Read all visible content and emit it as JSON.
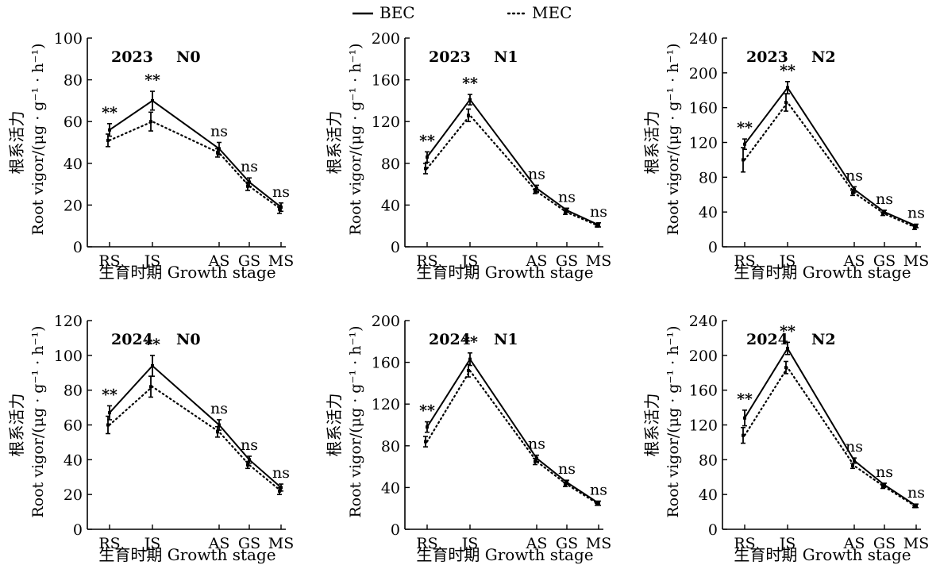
{
  "legend": {
    "items": [
      {
        "label": "BEC",
        "style": "solid"
      },
      {
        "label": "MEC",
        "style": "dotted"
      }
    ]
  },
  "chart_data": [
    {
      "type": "line",
      "title": "2023 N0",
      "year_label": "2023",
      "treatment_label": "N0",
      "xlabel": "生育时期 Growth stage",
      "ylabel_cn": "根系活力",
      "ylabel_en": "Root vigor/(μg · g⁻¹ · h⁻¹)",
      "categories": [
        "RS",
        "JS",
        "AS",
        "GS",
        "MS"
      ],
      "ylim": [
        0,
        100
      ],
      "yticks": [
        0,
        20,
        40,
        60,
        80,
        100
      ],
      "series": [
        {
          "name": "BEC",
          "style": "solid",
          "values": [
            56,
            70,
            47,
            31,
            19
          ],
          "errors": [
            3,
            4.5,
            3,
            2,
            2
          ]
        },
        {
          "name": "MEC",
          "style": "dotted",
          "values": [
            51,
            60,
            45,
            29,
            18
          ],
          "errors": [
            3,
            4.5,
            2,
            2,
            2
          ]
        }
      ],
      "significance": [
        "**",
        "**",
        "ns",
        "ns",
        "ns"
      ]
    },
    {
      "type": "line",
      "title": "2023 N1",
      "year_label": "2023",
      "treatment_label": "N1",
      "xlabel": "生育时期 Growth stage",
      "ylabel_cn": "根系活力",
      "ylabel_en": "Root vigor/(μg · g⁻¹ · h⁻¹)",
      "categories": [
        "RS",
        "JS",
        "AS",
        "GS",
        "MS"
      ],
      "ylim": [
        0,
        200
      ],
      "yticks": [
        0,
        40,
        80,
        120,
        160,
        200
      ],
      "series": [
        {
          "name": "BEC",
          "style": "solid",
          "values": [
            86,
            141,
            56,
            35,
            21
          ],
          "errors": [
            5,
            5,
            3,
            2,
            2
          ]
        },
        {
          "name": "MEC",
          "style": "dotted",
          "values": [
            75,
            126,
            53,
            33,
            20
          ],
          "errors": [
            5,
            6,
            2,
            2,
            1
          ]
        }
      ],
      "significance": [
        "**",
        "**",
        "ns",
        "ns",
        "ns"
      ]
    },
    {
      "type": "line",
      "title": "2023 N2",
      "year_label": "2023",
      "treatment_label": "N2",
      "xlabel": "生育时期 Growth stage",
      "ylabel_cn": "根系活力",
      "ylabel_en": "Root vigor/(μg · g⁻¹ · h⁻¹)",
      "categories": [
        "RS",
        "JS",
        "AS",
        "GS",
        "MS"
      ],
      "ylim": [
        0,
        240
      ],
      "yticks": [
        0,
        40,
        80,
        120,
        160,
        200,
        240
      ],
      "series": [
        {
          "name": "BEC",
          "style": "solid",
          "values": [
            118,
            183,
            66,
            40,
            24
          ],
          "errors": [
            6,
            7,
            3,
            2,
            2
          ]
        },
        {
          "name": "MEC",
          "style": "dotted",
          "values": [
            100,
            166,
            62,
            38,
            22
          ],
          "errors": [
            14,
            10,
            3,
            2,
            2
          ]
        }
      ],
      "significance": [
        "**",
        "**",
        "ns",
        "ns",
        "ns"
      ]
    },
    {
      "type": "line",
      "title": "2024 N0",
      "year_label": "2024",
      "treatment_label": "N0",
      "xlabel": "生育时期 Growth stage",
      "ylabel_cn": "根系活力",
      "ylabel_en": "Root vigor/(μg · g⁻¹ · h⁻¹)",
      "categories": [
        "RS",
        "JS",
        "AS",
        "GS",
        "MS"
      ],
      "ylim": [
        0,
        120
      ],
      "yticks": [
        0,
        20,
        40,
        60,
        80,
        100,
        120
      ],
      "series": [
        {
          "name": "BEC",
          "style": "solid",
          "values": [
            67,
            94,
            60,
            40,
            24
          ],
          "errors": [
            4,
            6,
            3,
            2,
            2
          ]
        },
        {
          "name": "MEC",
          "style": "dotted",
          "values": [
            60,
            82,
            56,
            37,
            22
          ],
          "errors": [
            5,
            6,
            3,
            2,
            2
          ]
        }
      ],
      "significance": [
        "**",
        "**",
        "ns",
        "ns",
        "ns"
      ]
    },
    {
      "type": "line",
      "title": "2024 N1",
      "year_label": "2024",
      "treatment_label": "N1",
      "xlabel": "生育时期 Growth stage",
      "ylabel_cn": "根系活力",
      "ylabel_en": "Root vigor/(μg · g⁻¹ · h⁻¹)",
      "categories": [
        "RS",
        "JS",
        "AS",
        "GS",
        "MS"
      ],
      "ylim": [
        0,
        200
      ],
      "yticks": [
        0,
        40,
        80,
        120,
        160,
        200
      ],
      "series": [
        {
          "name": "BEC",
          "style": "solid",
          "values": [
            98,
            163,
            68,
            45,
            25
          ],
          "errors": [
            5,
            6,
            3,
            2,
            2
          ]
        },
        {
          "name": "MEC",
          "style": "dotted",
          "values": [
            84,
            152,
            65,
            43,
            24
          ],
          "errors": [
            5,
            6,
            3,
            2,
            1
          ]
        }
      ],
      "significance": [
        "**",
        "**",
        "ns",
        "ns",
        "ns"
      ]
    },
    {
      "type": "line",
      "title": "2024 N2",
      "year_label": "2024",
      "treatment_label": "N2",
      "xlabel": "生育时期 Growth stage",
      "ylabel_cn": "根系活力",
      "ylabel_en": "Root vigor/(μg · g⁻¹ · h⁻¹)",
      "categories": [
        "RS",
        "JS",
        "AS",
        "GS",
        "MS"
      ],
      "ylim": [
        0,
        240
      ],
      "yticks": [
        0,
        40,
        80,
        120,
        160,
        200,
        240
      ],
      "series": [
        {
          "name": "BEC",
          "style": "solid",
          "values": [
            128,
            208,
            79,
            51,
            27
          ],
          "errors": [
            9,
            7,
            3,
            2,
            2
          ]
        },
        {
          "name": "MEC",
          "style": "dotted",
          "values": [
            108,
            186,
            73,
            49,
            26
          ],
          "errors": [
            9,
            7,
            3,
            2,
            1
          ]
        }
      ],
      "significance": [
        "**",
        "**",
        "ns",
        "ns",
        "ns"
      ]
    }
  ]
}
